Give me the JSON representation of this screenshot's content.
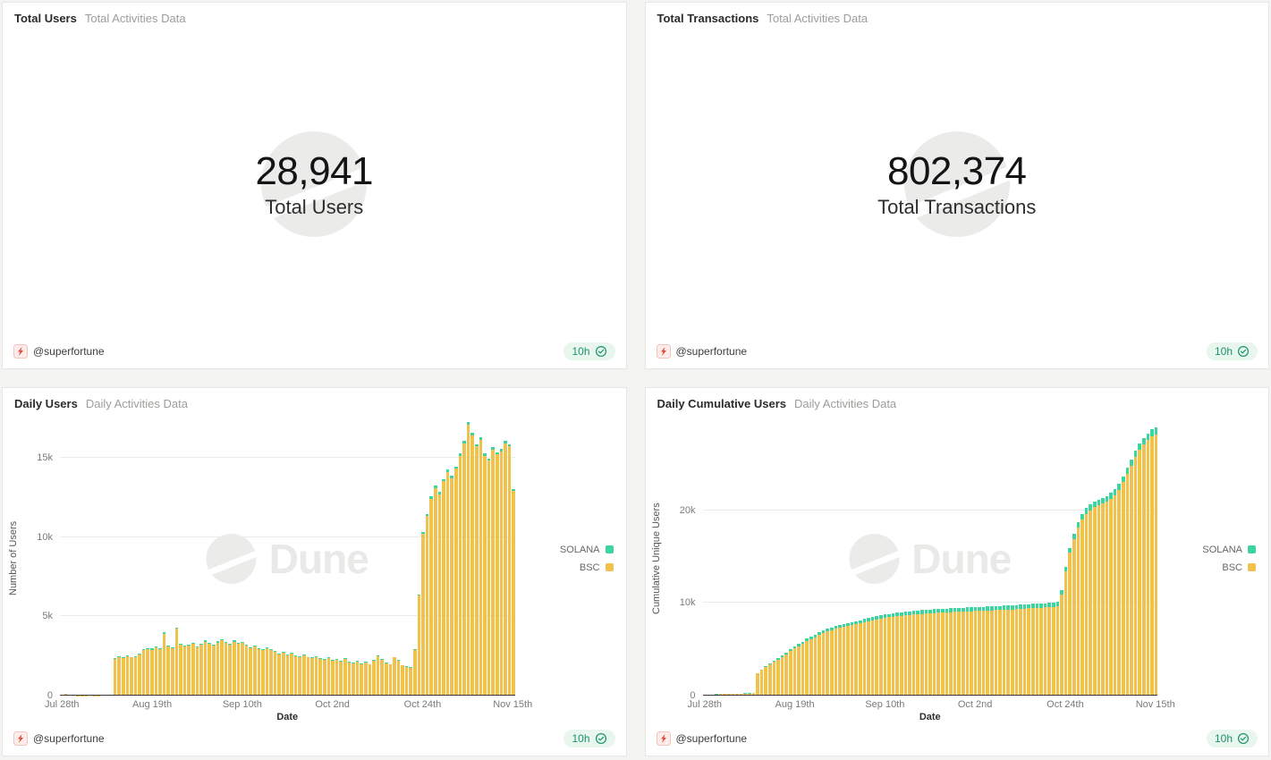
{
  "footer": {
    "author": "@superfortune",
    "updated": "10h"
  },
  "colors": {
    "solana": "#3bd6a0",
    "bsc": "#f0c24c",
    "pill_green": "#1a9567",
    "pill_bg": "#e8f6ee",
    "watermark": "#ebebe9"
  },
  "panels": {
    "total_users": {
      "title": "Total Users",
      "subtitle": "Total Activities Data",
      "value": "28,941",
      "label": "Total Users"
    },
    "total_transactions": {
      "title": "Total Transactions",
      "subtitle": "Total Activities Data",
      "value": "802,374",
      "label": "Total Transactions"
    }
  },
  "chart_data": [
    {
      "type": "bar",
      "stacked": true,
      "title": "Daily Users",
      "subtitle": "Daily Activities Data",
      "xlabel": "Date",
      "ylabel": "Number of Users",
      "ylim": [
        0,
        17300
      ],
      "grid": true,
      "legend_position": "right",
      "y_ticks": [
        {
          "value": 0,
          "label": "0"
        },
        {
          "value": 5000,
          "label": "5k"
        },
        {
          "value": 10000,
          "label": "10k"
        },
        {
          "value": 15000,
          "label": "15k"
        }
      ],
      "x_ticks": [
        {
          "index": 0,
          "label": "Jul 28th"
        },
        {
          "index": 22,
          "label": "Aug 19th"
        },
        {
          "index": 44,
          "label": "Sep 10th"
        },
        {
          "index": 66,
          "label": "Oct 2nd"
        },
        {
          "index": 88,
          "label": "Oct 24th"
        },
        {
          "index": 110,
          "label": "Nov 15th"
        }
      ],
      "series": [
        {
          "name": "SOLANA",
          "color": "#3bd6a0",
          "values": [
            5,
            8,
            6,
            3,
            2,
            2,
            3,
            3,
            2,
            2,
            3,
            3,
            4,
            45,
            50,
            48,
            52,
            50,
            49,
            55,
            60,
            62,
            60,
            64,
            62,
            80,
            65,
            63,
            85,
            66,
            64,
            65,
            67,
            64,
            66,
            70,
            67,
            65,
            69,
            72,
            68,
            66,
            70,
            67,
            68,
            63,
            60,
            62,
            59,
            57,
            60,
            58,
            55,
            52,
            54,
            51,
            53,
            50,
            49,
            51,
            48,
            47,
            49,
            46,
            45,
            47,
            44,
            45,
            43,
            46,
            42,
            41,
            43,
            40,
            42,
            39,
            44,
            50,
            45,
            41,
            39,
            48,
            44,
            38,
            36,
            35,
            58,
            95,
            130,
            135,
            140,
            145,
            142,
            148,
            152,
            150,
            153,
            158,
            162,
            170,
            165,
            160,
            163,
            155,
            152,
            158,
            155,
            157,
            160,
            158,
            135
          ]
        },
        {
          "name": "BSC",
          "color": "#f0c24c",
          "values": [
            60,
            110,
            70,
            30,
            20,
            20,
            25,
            30,
            25,
            20,
            30,
            35,
            40,
            2300,
            2450,
            2350,
            2500,
            2400,
            2450,
            2600,
            2850,
            2950,
            2900,
            3050,
            2950,
            3900,
            3100,
            3000,
            4200,
            3200,
            3100,
            3150,
            3250,
            3050,
            3200,
            3400,
            3250,
            3150,
            3350,
            3500,
            3300,
            3200,
            3400,
            3250,
            3300,
            3150,
            3000,
            3100,
            2950,
            2850,
            3000,
            2900,
            2750,
            2600,
            2700,
            2550,
            2650,
            2500,
            2450,
            2550,
            2400,
            2350,
            2450,
            2300,
            2250,
            2350,
            2200,
            2250,
            2150,
            2300,
            2100,
            2050,
            2150,
            2000,
            2100,
            1950,
            2200,
            2500,
            2250,
            2050,
            1950,
            2400,
            2200,
            1900,
            1800,
            1750,
            2900,
            6300,
            10200,
            11300,
            12400,
            13100,
            12700,
            13500,
            14100,
            13700,
            14300,
            15100,
            15900,
            17100,
            16400,
            15700,
            16100,
            15100,
            14800,
            15500,
            15200,
            15400,
            15900,
            15700,
            12900
          ]
        }
      ]
    },
    {
      "type": "bar",
      "stacked": true,
      "title": "Daily Cumulative Users",
      "subtitle": "Daily Activities Data",
      "xlabel": "Date",
      "ylabel": "Cumulative Unique Users",
      "ylim": [
        0,
        29600
      ],
      "grid": true,
      "legend_position": "right",
      "y_ticks": [
        {
          "value": 0,
          "label": "0"
        },
        {
          "value": 10000,
          "label": "10k"
        },
        {
          "value": 20000,
          "label": "20k"
        }
      ],
      "x_ticks": [
        {
          "index": 0,
          "label": "Jul 28th"
        },
        {
          "index": 22,
          "label": "Aug 19th"
        },
        {
          "index": 44,
          "label": "Sep 10th"
        },
        {
          "index": 66,
          "label": "Oct 2nd"
        },
        {
          "index": 88,
          "label": "Oct 24th"
        },
        {
          "index": 110,
          "label": "Nov 15th"
        }
      ],
      "series": [
        {
          "name": "SOLANA",
          "color": "#3bd6a0",
          "values": [
            5,
            8,
            10,
            12,
            14,
            15,
            16,
            17,
            18,
            20,
            22,
            24,
            26,
            60,
            75,
            90,
            105,
            120,
            135,
            150,
            165,
            180,
            195,
            210,
            222,
            235,
            247,
            258,
            270,
            280,
            290,
            298,
            306,
            313,
            320,
            326,
            332,
            338,
            344,
            350,
            355,
            360,
            365,
            370,
            374,
            378,
            382,
            385,
            388,
            391,
            394,
            397,
            399,
            401,
            403,
            405,
            407,
            409,
            411,
            413,
            415,
            417,
            419,
            421,
            423,
            425,
            427,
            429,
            431,
            433,
            435,
            437,
            439,
            441,
            443,
            445,
            447,
            450,
            453,
            455,
            457,
            460,
            462,
            464,
            466,
            468,
            475,
            500,
            530,
            550,
            568,
            582,
            594,
            604,
            612,
            618,
            624,
            630,
            636,
            642,
            650,
            658,
            666,
            674,
            680,
            686,
            690,
            694,
            697,
            699,
            700
          ]
        },
        {
          "name": "BSC",
          "color": "#f0c24c",
          "values": [
            50,
            90,
            120,
            140,
            155,
            165,
            175,
            185,
            195,
            210,
            225,
            240,
            260,
            2400,
            2750,
            3050,
            3350,
            3650,
            3900,
            4150,
            4450,
            4800,
            5100,
            5350,
            5600,
            5900,
            6100,
            6300,
            6550,
            6750,
            6900,
            7050,
            7200,
            7300,
            7400,
            7500,
            7600,
            7700,
            7800,
            7900,
            8000,
            8100,
            8200,
            8300,
            8380,
            8440,
            8500,
            8550,
            8600,
            8650,
            8700,
            8740,
            8780,
            8810,
            8840,
            8870,
            8900,
            8925,
            8950,
            8975,
            9000,
            9020,
            9040,
            9060,
            9080,
            9100,
            9120,
            9140,
            9160,
            9180,
            9200,
            9220,
            9240,
            9260,
            9280,
            9300,
            9330,
            9360,
            9390,
            9410,
            9430,
            9460,
            9480,
            9500,
            9520,
            9540,
            9650,
            10900,
            13400,
            15400,
            16900,
            18100,
            19000,
            19600,
            20000,
            20300,
            20500,
            20700,
            20900,
            21200,
            21600,
            22200,
            23000,
            23900,
            24800,
            25700,
            26500,
            27100,
            27600,
            28000,
            28200
          ]
        }
      ]
    }
  ]
}
